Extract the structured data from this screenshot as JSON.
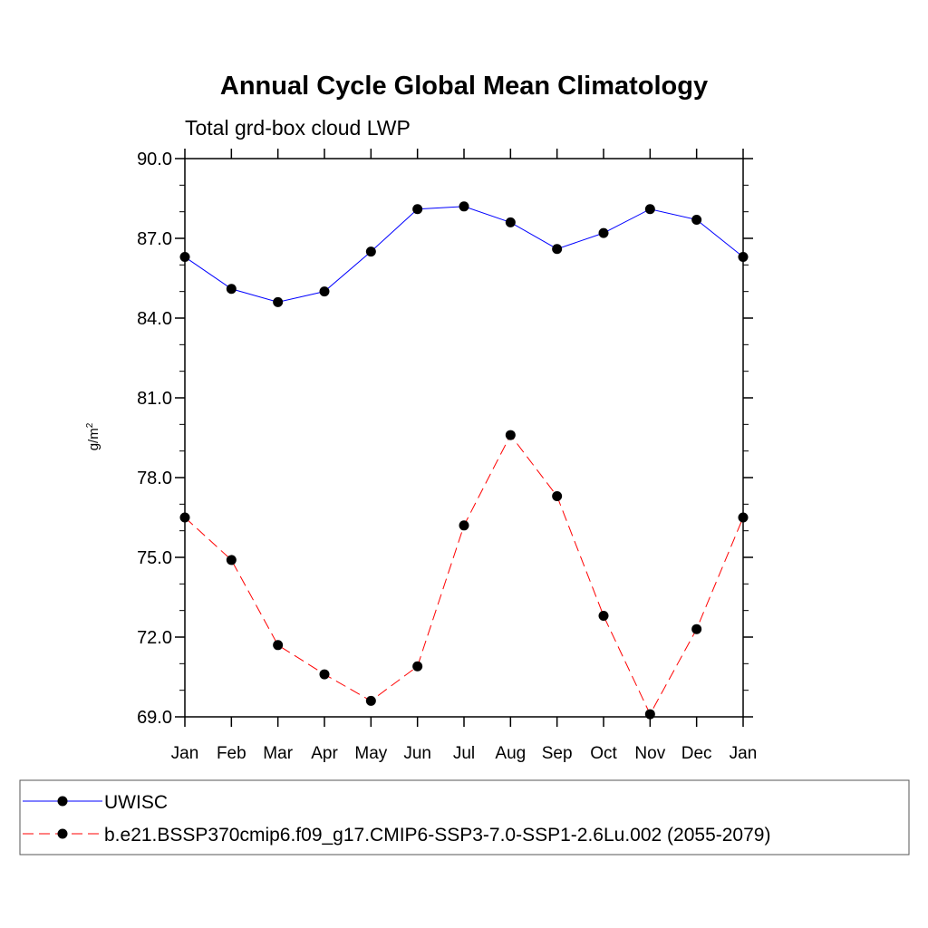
{
  "chart_data": {
    "type": "line",
    "title": "Annual Cycle Global Mean Climatology",
    "subtitle": "Total grd-box cloud LWP",
    "ylabel": "g/m",
    "ylabel_sup": "2",
    "xlabel": "",
    "ylim": [
      69.0,
      90.0
    ],
    "yticks": [
      "90.0",
      "87.0",
      "84.0",
      "81.0",
      "78.0",
      "75.0",
      "72.0",
      "69.0"
    ],
    "ytick_values": [
      90,
      87,
      84,
      81,
      78,
      75,
      72,
      69
    ],
    "categories": [
      "Jan",
      "Feb",
      "Mar",
      "Apr",
      "May",
      "Jun",
      "Jul",
      "Aug",
      "Sep",
      "Oct",
      "Nov",
      "Dec",
      "Jan"
    ],
    "grid": false,
    "legend_placement": "bottom",
    "series": [
      {
        "name": "UWISC",
        "color": "#0000ff",
        "style": "solid",
        "values": [
          86.3,
          85.1,
          84.6,
          85.0,
          86.5,
          88.1,
          88.2,
          87.6,
          86.6,
          87.2,
          88.1,
          87.7,
          86.3
        ]
      },
      {
        "name": "b.e21.BSSP370cmip6.f09_g17.CMIP6-SSP3-7.0-SSP1-2.6Lu.002 (2055-2079)",
        "color": "#ff0000",
        "style": "dashed",
        "values": [
          76.5,
          74.9,
          71.7,
          70.6,
          69.6,
          70.9,
          76.2,
          79.6,
          77.3,
          72.8,
          69.1,
          72.3,
          76.5
        ]
      }
    ]
  }
}
